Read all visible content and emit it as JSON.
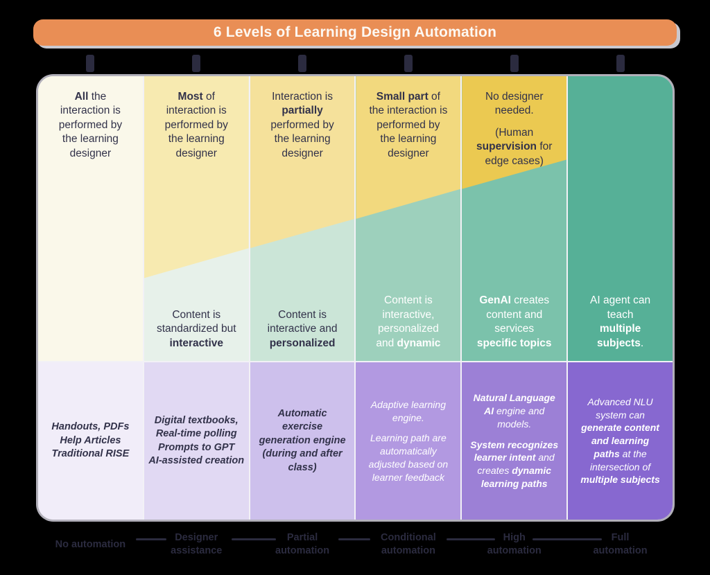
{
  "title": "6 Levels of Learning Design Automation",
  "palette": {
    "banner_orange": "#e98e55",
    "banner_shadow": "#c9c8cf",
    "banner_text": "#fdf8f2",
    "page_bg": "#000000",
    "panel_outline": "#b2b0ba",
    "separator": "#f2f1f6",
    "dark_text": "#32324a",
    "light_text": "#ffffff",
    "axis_color": "#2b2b3f"
  },
  "columns": [
    {
      "id": "level-0",
      "top": "**All** the\ninteraction is\nperformed by\nthe learning\ndesigner",
      "middle": "",
      "examples": "Handouts, PDFs\nHelp Articles\nTraditional RISE",
      "label": "No automation",
      "colors": {
        "yellow": "#faf8ea",
        "teal": "#faf8ea",
        "purple": "#f1edf9"
      }
    },
    {
      "id": "level-1",
      "top": "**Most** of\ninteraction is\nperformed by\nthe learning\ndesigner",
      "middle": "Content is\nstandardized but\n**interactive**",
      "examples": "Digital textbooks,\nReal-time polling\nPrompts to GPT\nAI-assisted creation",
      "label": "Designer\nassistance",
      "colors": {
        "yellow": "#f7eab0",
        "teal": "#e7f1ea",
        "purple": "#e1d9f3"
      }
    },
    {
      "id": "level-2",
      "top": "Interaction is\n**partially**\nperformed by\nthe learning\ndesigner",
      "middle": "Content is\ninteractive and\n**personalized**",
      "examples": "Automatic\nexercise\ngeneration engine\n(during and after\nclass)",
      "label": "Partial\nautomation",
      "colors": {
        "yellow": "#f5e19b",
        "teal": "#cbe5d7",
        "purple": "#cdc0ec"
      }
    },
    {
      "id": "level-3",
      "top": "**Small part** of\nthe interaction is\nperformed by\nthe learning\ndesigner",
      "middle": "Content is\ninteractive,\npersonalized\nand **dynamic**",
      "examples": "Adaptive learning\nengine.\n\nLearning path are\nautomatically\nadjusted based on\nlearner feedback",
      "label": "Conditional\nautomation",
      "colors": {
        "yellow": "#f2d97e",
        "teal": "#9dd0bc",
        "purple": "#b299e1"
      }
    },
    {
      "id": "level-4",
      "top": "No designer\nneeded.\n\n(Human\n**supervision** for\nedge cases)",
      "middle": "**GenAI** creates\ncontent and\nservices\n**specific topics**",
      "examples": "**Natural Language**\n**AI** engine and\nmodels.\n\n**System recognizes**\n**learner intent** and\ncreates **dynamic**\n**learning paths**",
      "label": "High\nautomation",
      "colors": {
        "yellow": "#ebc951",
        "teal": "#7bc2ab",
        "purple": "#9c80d6"
      }
    },
    {
      "id": "level-5",
      "top": "",
      "middle": "AI agent can\nteach\n**multiple**\n**subjects**.",
      "examples": "Advanced NLU\nsystem can\n**generate content**\n**and learning**\n**paths** at the\nintersection of\n**multiple subjects**",
      "label": "Full\nautomation",
      "colors": {
        "teal": "#56b097",
        "purple": "#8768d0"
      }
    }
  ]
}
